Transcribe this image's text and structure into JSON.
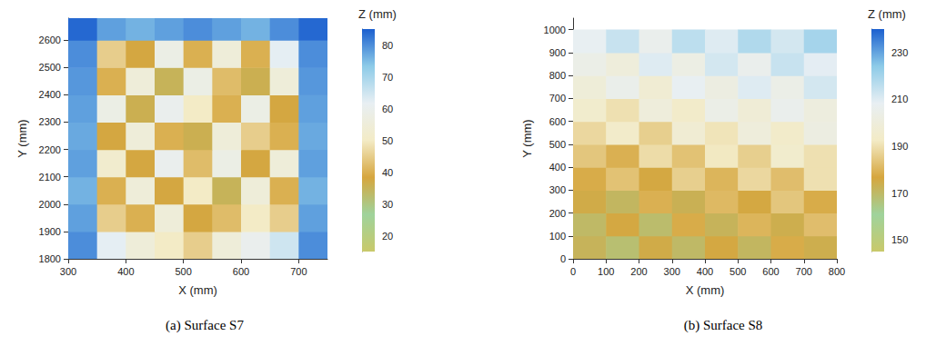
{
  "chart_data": [
    {
      "type": "heatmap",
      "title": "(a) Surface S7",
      "x_label": "X (mm)",
      "y_label": "Y (mm)",
      "colorbar_label": "Z (mm)",
      "x": [
        325,
        375,
        425,
        475,
        525,
        575,
        625,
        675,
        725
      ],
      "y": [
        1850,
        1950,
        2050,
        2150,
        2250,
        2350,
        2450,
        2550,
        2650
      ],
      "z": [
        [
          80,
          62,
          55,
          50,
          45,
          55,
          60,
          65,
          80
        ],
        [
          78,
          45,
          40,
          55,
          38,
          42,
          50,
          45,
          78
        ],
        [
          76,
          40,
          55,
          38,
          50,
          35,
          55,
          40,
          76
        ],
        [
          78,
          52,
          38,
          60,
          42,
          58,
          38,
          55,
          78
        ],
        [
          77,
          38,
          55,
          40,
          36,
          55,
          45,
          40,
          77
        ],
        [
          78,
          58,
          36,
          60,
          50,
          40,
          58,
          38,
          78
        ],
        [
          79,
          40,
          55,
          35,
          58,
          42,
          36,
          55,
          79
        ],
        [
          80,
          45,
          38,
          58,
          40,
          55,
          40,
          62,
          80
        ],
        [
          84,
          78,
          76,
          78,
          80,
          78,
          76,
          80,
          84
        ]
      ],
      "xlim": [
        300,
        750
      ],
      "xticks": [
        300,
        400,
        500,
        600,
        700
      ],
      "ylim": [
        1800,
        2680
      ],
      "yticks": [
        1800,
        1900,
        2000,
        2100,
        2200,
        2300,
        2400,
        2500,
        2600
      ],
      "colorbar_range": [
        15,
        85
      ],
      "colorbar_ticks": [
        20,
        30,
        40,
        50,
        60,
        70,
        80
      ],
      "grid": false
    },
    {
      "type": "heatmap",
      "title": "(b) Surface S8",
      "x_label": "X (mm)",
      "y_label": "Y (mm)",
      "colorbar_label": "Z (mm)",
      "x": [
        50,
        150,
        250,
        350,
        450,
        550,
        650,
        750
      ],
      "y": [
        50,
        150,
        250,
        350,
        450,
        550,
        650,
        750,
        850,
        950
      ],
      "z": [
        [
          172,
          168,
          175,
          170,
          176,
          171,
          178,
          174
        ],
        [
          170,
          176,
          169,
          178,
          172,
          180,
          174,
          182
        ],
        [
          175,
          171,
          179,
          173,
          181,
          176,
          184,
          178
        ],
        [
          178,
          183,
          176,
          186,
          180,
          188,
          182,
          190
        ],
        [
          184,
          179,
          189,
          183,
          192,
          186,
          195,
          190
        ],
        [
          188,
          194,
          186,
          197,
          191,
          200,
          194,
          202
        ],
        [
          195,
          190,
          200,
          194,
          204,
          198,
          206,
          201
        ],
        [
          199,
          205,
          197,
          208,
          202,
          210,
          204,
          212
        ],
        [
          204,
          200,
          210,
          203,
          212,
          206,
          214,
          209
        ],
        [
          208,
          214,
          206,
          216,
          210,
          218,
          212,
          220
        ]
      ],
      "xlim": [
        0,
        800
      ],
      "xticks": [
        0,
        100,
        200,
        300,
        400,
        500,
        600,
        700,
        800
      ],
      "ylim": [
        0,
        1050
      ],
      "yticks": [
        0,
        100,
        200,
        300,
        400,
        500,
        600,
        700,
        800,
        900,
        1000
      ],
      "colorbar_range": [
        145,
        240
      ],
      "colorbar_ticks": [
        150,
        170,
        190,
        210,
        230
      ],
      "grid": false
    }
  ]
}
